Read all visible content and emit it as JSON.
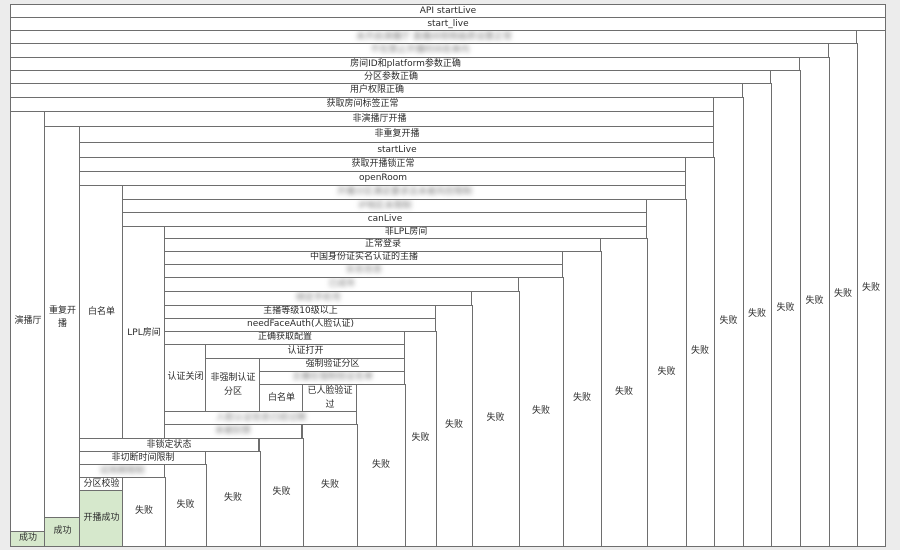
{
  "colors": {
    "success_fill": "#d6e8cc",
    "box_fill": "#ffffff",
    "line": "#6e6e6e",
    "background": "#ececec"
  },
  "diagram": {
    "title": "API startLive",
    "entry": "start_live",
    "redacted_1": "未开启演播厅 直播间视频画质设置正常",
    "redacted_2": "不在禁止开播时间名单内",
    "room_platform_check": "房间ID和platform参数正确",
    "area_check": "分区参数正确",
    "user_permission": "用户权限正确",
    "room_tags": "获取房间标签正常",
    "studio_room": "演播厅",
    "not_studio": "非演播厅开播",
    "repeat_live": "重复开播",
    "not_repeat": "非重复开播",
    "start_live_call": "startLive",
    "lock_ok": "获取开播锁正常",
    "open_room": "openRoom",
    "whitelist_1": "白名单",
    "redacted_3": "开播分区满足要求且未被风控限制",
    "ip_region": "IP地区未限制",
    "can_live": "canLive",
    "lpl_room": "LPL房间",
    "not_lpl": "非LPL房间",
    "normal_login": "正常登录",
    "realname": "中国身份证实名认证的主播",
    "redacted_4": "实名信息",
    "redacted_5": "已成年",
    "redacted_6": "未被封禁",
    "redacted_7": "绑定手机号",
    "anchor_level": "主播等级10级以上",
    "need_face_auth": "needFaceAuth(人脸认证)",
    "config_ok": "正确获取配置",
    "auth_closed": "认证关闭",
    "auth_open": "认证打开",
    "force_area": "强制验证分区",
    "non_force_area": "非强制认证分区",
    "redacted_8": "主播在强制验证名单",
    "whitelist_2": "白名单",
    "face_verified": "已人脸验证过",
    "redacted_9": "人脸认证信息已经过期",
    "redacted_10": "未被封禁",
    "not_locked": "非锁定状态",
    "no_time_limit": "非切断时间限制",
    "redacted_11": "试用期限制",
    "area_check_2": "分区校验",
    "success": "成功",
    "success_2": "成功",
    "live_success": "开播成功",
    "fail": "失败"
  }
}
